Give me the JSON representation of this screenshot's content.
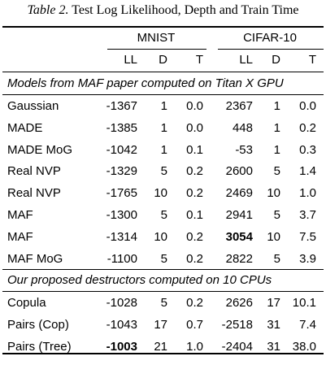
{
  "caption": {
    "label": "Table 2.",
    "text": "Test Log Likelihood, Depth and Train Time"
  },
  "groups": [
    "MNIST",
    "CIFAR-10"
  ],
  "subheaders": [
    "LL",
    "D",
    "T",
    "LL",
    "D",
    "T"
  ],
  "sections": [
    {
      "title": "Models from MAF paper computed on Titan X GPU",
      "rows": [
        {
          "model": "Gaussian",
          "cells": [
            "-1367",
            "1",
            "0.0",
            "2367",
            "1",
            "0.0"
          ]
        },
        {
          "model": "MADE",
          "cells": [
            "-1385",
            "1",
            "0.0",
            "448",
            "1",
            "0.2"
          ]
        },
        {
          "model": "MADE MoG",
          "cells": [
            "-1042",
            "1",
            "0.1",
            "-53",
            "1",
            "0.3"
          ]
        },
        {
          "model": "Real NVP",
          "cells": [
            "-1329",
            "5",
            "0.2",
            "2600",
            "5",
            "1.4"
          ]
        },
        {
          "model": "Real NVP",
          "cells": [
            "-1765",
            "10",
            "0.2",
            "2469",
            "10",
            "1.0"
          ]
        },
        {
          "model": "MAF",
          "cells": [
            "-1300",
            "5",
            "0.1",
            "2941",
            "5",
            "3.7"
          ]
        },
        {
          "model": "MAF",
          "cells": [
            "-1314",
            "10",
            "0.2",
            "3054",
            "10",
            "7.5"
          ],
          "bold": [
            3
          ]
        },
        {
          "model": "MAF MoG",
          "cells": [
            "-1100",
            "5",
            "0.2",
            "2822",
            "5",
            "3.9"
          ]
        }
      ]
    },
    {
      "title": "Our proposed destructors computed on 10 CPUs",
      "rows": [
        {
          "model": "Copula",
          "cells": [
            "-1028",
            "5",
            "0.2",
            "2626",
            "17",
            "10.1"
          ]
        },
        {
          "model": "Pairs (Cop)",
          "cells": [
            "-1043",
            "17",
            "0.7",
            "-2518",
            "31",
            "7.4"
          ]
        },
        {
          "model": "Pairs (Tree)",
          "cells": [
            "-1003",
            "21",
            "1.0",
            "-2404",
            "31",
            "38.0"
          ],
          "bold": [
            0
          ]
        }
      ]
    }
  ]
}
